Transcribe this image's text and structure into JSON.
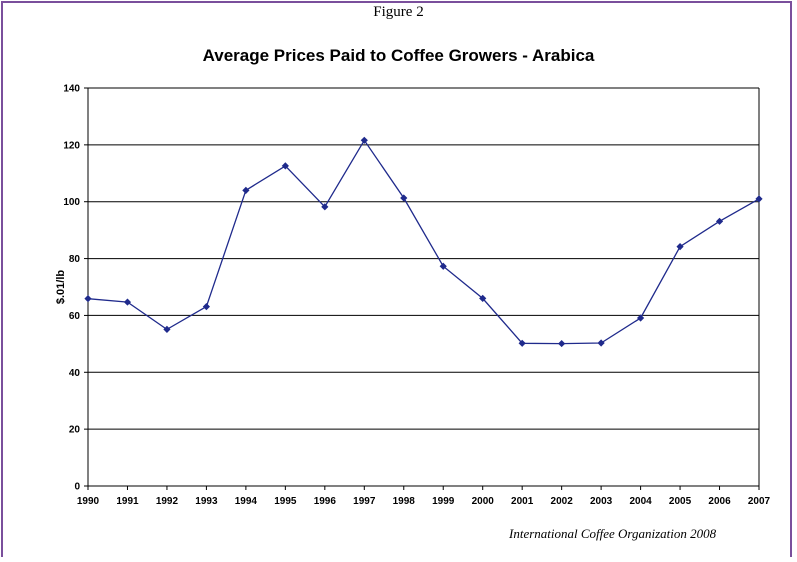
{
  "page": {
    "figure_label": "Figure 2",
    "source_note": "International Coffee Organization 2008"
  },
  "colors": {
    "border": "#7a4f9c",
    "series": "#1f2a8c",
    "grid": "#000000"
  },
  "chart_data": {
    "type": "line",
    "title": "Average Prices Paid to Coffee Growers - Arabica",
    "xlabel": "",
    "ylabel": "$.01/lb",
    "ylim": [
      0,
      140
    ],
    "yticks": [
      0,
      20,
      40,
      60,
      80,
      100,
      120,
      140
    ],
    "grid": "horizontal",
    "legend": "none",
    "x": [
      "1990",
      "1991",
      "1992",
      "1993",
      "1994",
      "1995",
      "1996",
      "1997",
      "1998",
      "1999",
      "2000",
      "2001",
      "2002",
      "2003",
      "2004",
      "2005",
      "2006",
      "2007"
    ],
    "series": [
      {
        "values": [
          65.9,
          64.7,
          55.1,
          63.1,
          104.0,
          112.6,
          98.2,
          121.6,
          101.3,
          77.3,
          66.0,
          50.2,
          50.1,
          50.3,
          59.1,
          84.2,
          93.1,
          101.0
        ]
      }
    ]
  }
}
